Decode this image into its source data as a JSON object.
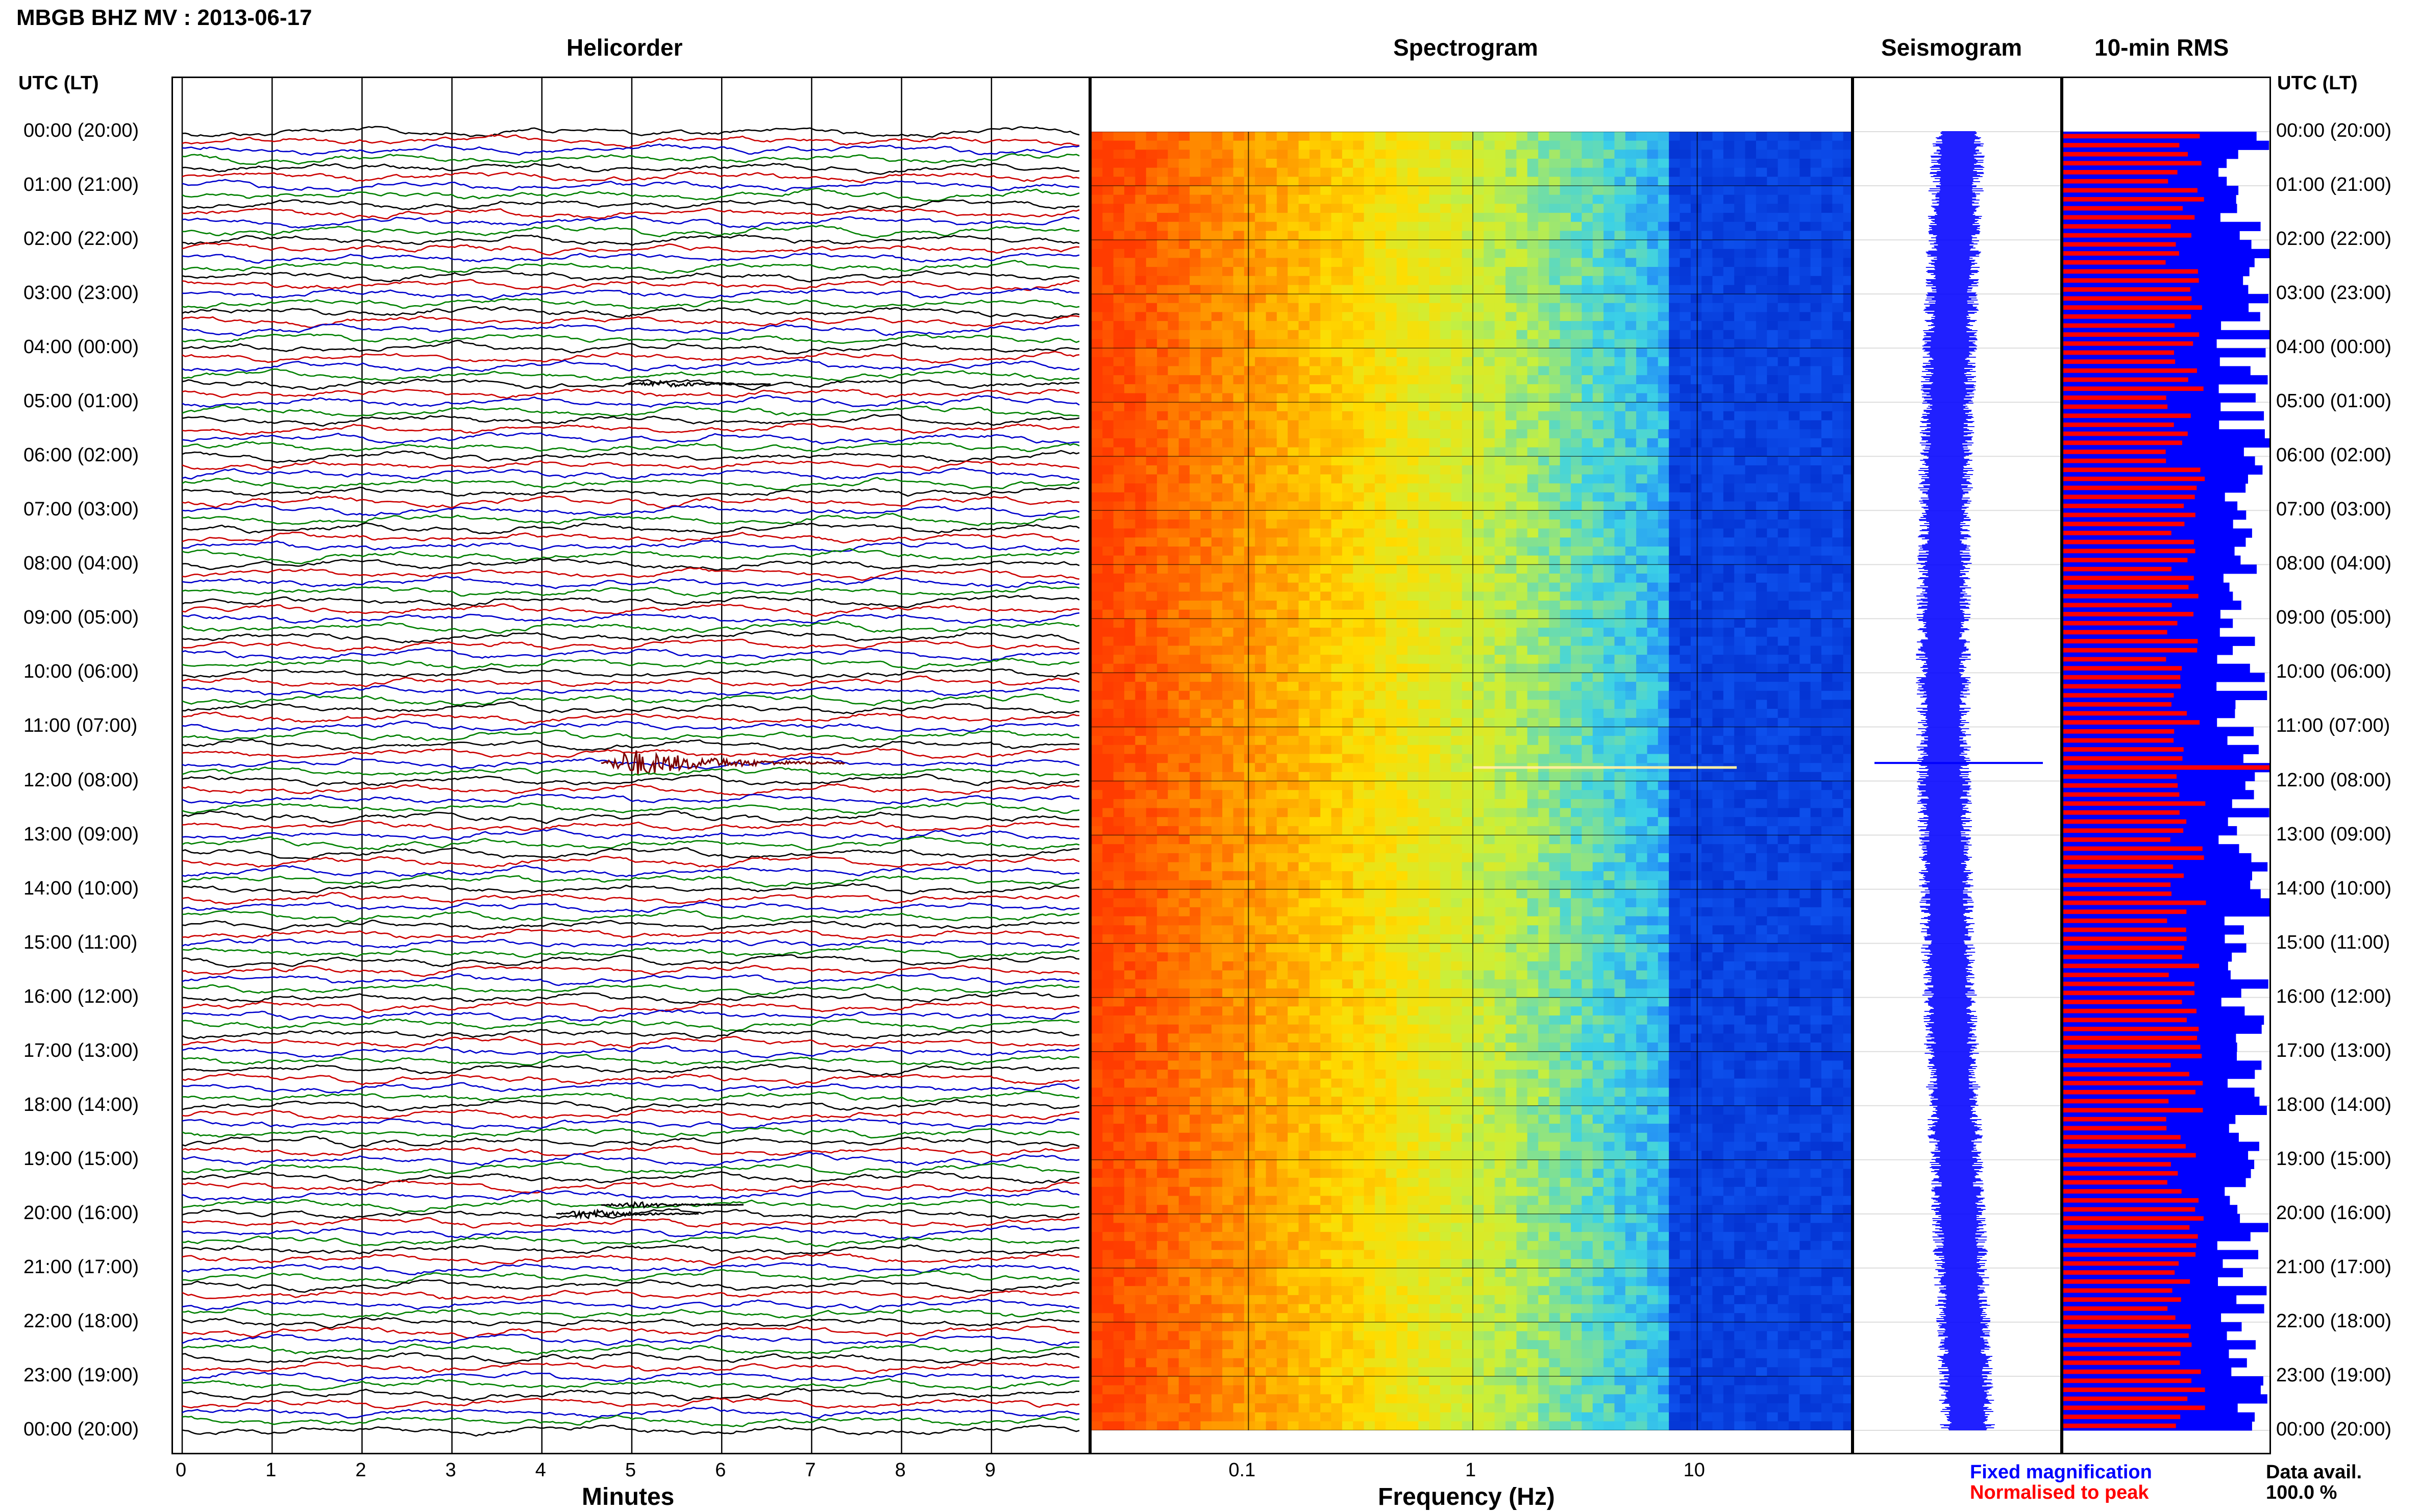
{
  "header": {
    "station_title": "MBGB BHZ MV : 2013-06-17"
  },
  "panels": {
    "helicorder": {
      "title": "Helicorder",
      "xlabel": "Minutes"
    },
    "spectrogram": {
      "title": "Spectrogram",
      "xlabel": "Frequency (Hz)"
    },
    "seismogram": {
      "title": "Seismogram"
    },
    "rms": {
      "title": "10-min RMS"
    }
  },
  "axes": {
    "left_title": "UTC (LT)",
    "right_title": "UTC (LT)",
    "time_labels": [
      "00:00 (20:00)",
      "01:00 (21:00)",
      "02:00 (22:00)",
      "03:00 (23:00)",
      "04:00 (00:00)",
      "05:00 (01:00)",
      "06:00 (02:00)",
      "07:00 (03:00)",
      "08:00 (04:00)",
      "09:00 (05:00)",
      "10:00 (06:00)",
      "11:00 (07:00)",
      "12:00 (08:00)",
      "13:00 (09:00)",
      "14:00 (10:00)",
      "15:00 (11:00)",
      "16:00 (12:00)",
      "17:00 (13:00)",
      "18:00 (14:00)",
      "19:00 (15:00)",
      "20:00 (16:00)",
      "21:00 (17:00)",
      "22:00 (18:00)",
      "23:00 (19:00)",
      "00:00 (20:00)"
    ]
  },
  "legend": {
    "fixed": "Fixed magnification",
    "normalised": "Normalised to peak",
    "fixed_color": "#0000ff",
    "normalised_color": "#ff0000",
    "data_avail_label": "Data avail.",
    "data_avail_value": "100.0 %"
  },
  "chart_data": [
    {
      "type": "line",
      "name_panel": "helicorder",
      "x_ticks": [
        "0",
        "1",
        "2",
        "3",
        "4",
        "5",
        "6",
        "7",
        "8",
        "9"
      ],
      "xlim": [
        0,
        10
      ],
      "trace_colors": [
        "#000000",
        "#cc0000",
        "#0000cc",
        "#008000"
      ],
      "lines_per_hour": 6,
      "events": [
        {
          "time_utc": "04:40",
          "minute": 5.3,
          "amplitude": "small"
        },
        {
          "time_utc": "11:40",
          "minute": 5.0,
          "amplitude": "large"
        },
        {
          "time_utc": "19:50",
          "minute": 5.0,
          "amplitude": "small"
        },
        {
          "time_utc": "20:00",
          "minute": 4.5,
          "amplitude": "medium"
        }
      ]
    },
    {
      "type": "heatmap",
      "name_panel": "spectrogram",
      "x_scale": "log",
      "x_ticks": [
        "0.1",
        "1",
        "10"
      ],
      "xlim": [
        0.02,
        50
      ],
      "colormap": [
        "#ff3c00",
        "#ff8c00",
        "#ffdc00",
        "#c8f03c",
        "#3cd2e6",
        "#1464ff",
        "#0028c8"
      ]
    },
    {
      "type": "area",
      "name_panel": "seismogram",
      "color": "#0000ff",
      "spike_time_utc": "11:40"
    },
    {
      "type": "bar",
      "name_panel": "rms",
      "orientation": "horizontal",
      "series": [
        {
          "name": "Fixed magnification",
          "color": "#0000ff"
        },
        {
          "name": "Normalised to peak",
          "color": "#ff0000"
        }
      ],
      "interval_minutes": 10,
      "peak_time_utc": "11:40"
    }
  ]
}
